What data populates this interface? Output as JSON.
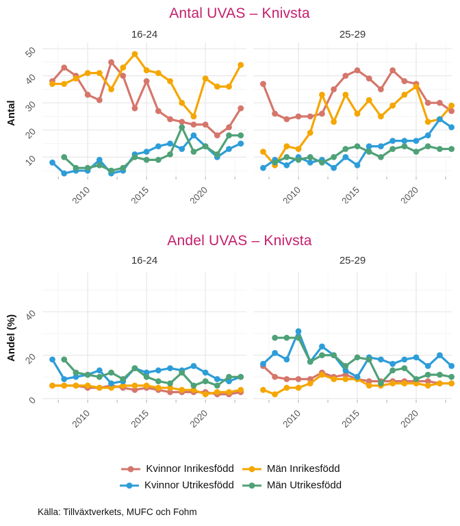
{
  "source": "Källa: Tillväxtverkets, MUFC och Fohm",
  "legend": {
    "items": [
      {
        "label": "Kvinnor Inrikesfödd",
        "color": "#d5766b"
      },
      {
        "label": "Män Inrikesfödd",
        "color": "#f5a600"
      },
      {
        "label": "Kvinnor Utrikesfödd",
        "color": "#2d9dd8"
      },
      {
        "label": "Män Utrikesfödd",
        "color": "#4fa177"
      }
    ]
  },
  "colors": {
    "title": "#c31e6b",
    "grid_major": "#e7e7e7",
    "grid_minor": "#f3f3f3",
    "tick_text": "#555555",
    "tick_mark": "#aaaaaa"
  },
  "chart_data": [
    {
      "type": "line",
      "title": "Antal UVAS – Knivsta",
      "ylabel": "Antal",
      "x": [
        2007,
        2008,
        2009,
        2010,
        2011,
        2012,
        2013,
        2014,
        2015,
        2016,
        2017,
        2018,
        2019,
        2020,
        2021,
        2022,
        2023
      ],
      "xticks": [
        2010,
        2015,
        2020
      ],
      "yticks": [
        10,
        20,
        30,
        40,
        50
      ],
      "ylim": [
        0,
        52
      ],
      "grid": true,
      "legend_position": "bottom",
      "panels": [
        {
          "facet": "16-24",
          "series": [
            {
              "name": "Kvinnor Inrikesfödd",
              "color": "#d5766b",
              "values": [
                38,
                43,
                40,
                33,
                31,
                45,
                40,
                28,
                38,
                27,
                24,
                23,
                22,
                22,
                18,
                21,
                28
              ]
            },
            {
              "name": "Män Inrikesfödd",
              "color": "#f5a600",
              "values": [
                37,
                37,
                39,
                41,
                41,
                35,
                43,
                48,
                42,
                41,
                38,
                30,
                25,
                39,
                36,
                36,
                44
              ]
            },
            {
              "name": "Kvinnor Utrikesfödd",
              "color": "#2d9dd8",
              "values": [
                8,
                4,
                5,
                5,
                9,
                4,
                5,
                11,
                12,
                14,
                15,
                13,
                18,
                14,
                10,
                13,
                15
              ]
            },
            {
              "name": "Män Utrikesfödd",
              "color": "#4fa177",
              "values": [
                null,
                10,
                6,
                6,
                7,
                5,
                6,
                10,
                9,
                9,
                11,
                21,
                12,
                14,
                11,
                18,
                18
              ]
            }
          ]
        },
        {
          "facet": "25-29",
          "series": [
            {
              "name": "Kvinnor Inrikesfödd",
              "color": "#d5766b",
              "values": [
                37,
                26,
                24,
                25,
                25,
                26,
                35,
                40,
                42,
                39,
                35,
                42,
                38,
                37,
                30,
                30,
                27
              ]
            },
            {
              "name": "Män Inrikesfödd",
              "color": "#f5a600",
              "values": [
                12,
                7,
                14,
                13,
                19,
                33,
                23,
                33,
                26,
                31,
                25,
                29,
                33,
                36,
                23,
                24,
                29
              ]
            },
            {
              "name": "Kvinnor Utrikesfödd",
              "color": "#2d9dd8",
              "values": [
                6,
                9,
                7,
                10,
                8,
                9,
                6,
                10,
                7,
                14,
                14,
                16,
                16,
                16,
                18,
                24,
                21
              ]
            },
            {
              "name": "Män Utrikesfödd",
              "color": "#4fa177",
              "values": [
                null,
                8,
                10,
                9,
                10,
                8,
                10,
                13,
                14,
                12,
                10,
                13,
                14,
                12,
                14,
                13,
                13
              ]
            }
          ]
        }
      ]
    },
    {
      "type": "line",
      "title": "Andel UVAS – Knivsta",
      "ylabel": "Andel (%)",
      "x": [
        2007,
        2008,
        2009,
        2010,
        2011,
        2012,
        2013,
        2014,
        2015,
        2016,
        2017,
        2018,
        2019,
        2020,
        2021,
        2022,
        2023
      ],
      "xticks": [
        2010,
        2015,
        2020
      ],
      "yticks": [
        0,
        20,
        40
      ],
      "ylim": [
        0,
        52
      ],
      "grid": true,
      "legend_position": "bottom",
      "panels": [
        {
          "facet": "16-24",
          "series": [
            {
              "name": "Kvinnor Inrikesfödd",
              "color": "#d5766b",
              "values": [
                6,
                6,
                6,
                5,
                5,
                6,
                5,
                4,
                5,
                4,
                3,
                3,
                3,
                3,
                2,
                2,
                3
              ]
            },
            {
              "name": "Män Inrikesfödd",
              "color": "#f5a600",
              "values": [
                6,
                6,
                6,
                6,
                5,
                5,
                6,
                6,
                6,
                5,
                5,
                4,
                4,
                2,
                3,
                3,
                4
              ]
            },
            {
              "name": "Kvinnor Utrikesfödd",
              "color": "#2d9dd8",
              "values": [
                18,
                9,
                10,
                11,
                13,
                7,
                8,
                14,
                12,
                13,
                14,
                13,
                15,
                12,
                9,
                8,
                10
              ]
            },
            {
              "name": "Män Utrikesfödd",
              "color": "#4fa177",
              "values": [
                null,
                18,
                12,
                11,
                10,
                12,
                9,
                14,
                10,
                8,
                7,
                12,
                6,
                8,
                6,
                10,
                10
              ]
            }
          ]
        },
        {
          "facet": "25-29",
          "series": [
            {
              "name": "Kvinnor Inrikesfödd",
              "color": "#d5766b",
              "values": [
                15,
                10,
                9,
                9,
                9,
                12,
                10,
                11,
                9,
                8,
                8,
                8,
                8,
                8,
                8,
                7,
                7
              ]
            },
            {
              "name": "Män Inrikesfödd",
              "color": "#f5a600",
              "values": [
                4,
                2,
                5,
                5,
                7,
                11,
                9,
                9,
                9,
                6,
                6,
                7,
                7,
                7,
                6,
                7,
                7
              ]
            },
            {
              "name": "Kvinnor Utrikesfödd",
              "color": "#2d9dd8",
              "values": [
                16,
                21,
                18,
                31,
                17,
                24,
                20,
                13,
                10,
                19,
                18,
                16,
                18,
                19,
                15,
                20,
                15
              ]
            },
            {
              "name": "Män Utrikesfödd",
              "color": "#4fa177",
              "values": [
                null,
                28,
                28,
                28,
                17,
                20,
                20,
                15,
                19,
                18,
                7,
                13,
                14,
                9,
                11,
                11,
                10
              ]
            }
          ]
        }
      ]
    }
  ]
}
